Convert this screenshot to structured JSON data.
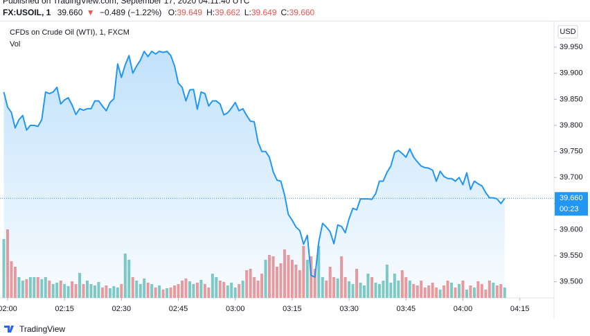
{
  "header": {
    "published": "Published on TradingView.com, September 17, 2020 04:11:40 UTC",
    "symbol": "FX:USOIL, 1",
    "price": "39.660",
    "arrow": "▼",
    "change": "−0.489 (−1.22%)",
    "ohlc": [
      {
        "key": "O:",
        "value": "39.649"
      },
      {
        "key": "H:",
        "value": "39.662"
      },
      {
        "key": "L:",
        "value": "39.649"
      },
      {
        "key": "C:",
        "value": "39.660"
      }
    ]
  },
  "chart_data": {
    "type": "area",
    "currency": "USD",
    "x": [
      "01:59",
      "02:00",
      "02:01",
      "02:02",
      "02:03",
      "02:04",
      "02:05",
      "02:06",
      "02:07",
      "02:08",
      "02:09",
      "02:10",
      "02:11",
      "02:12",
      "02:13",
      "02:14",
      "02:15",
      "02:16",
      "02:17",
      "02:18",
      "02:19",
      "02:20",
      "02:21",
      "02:22",
      "02:23",
      "02:24",
      "02:25",
      "02:26",
      "02:27",
      "02:28",
      "02:29",
      "02:30",
      "02:31",
      "02:32",
      "02:33",
      "02:34",
      "02:35",
      "02:36",
      "02:37",
      "02:38",
      "02:39",
      "02:40",
      "02:41",
      "02:42",
      "02:43",
      "02:44",
      "02:45",
      "02:46",
      "02:47",
      "02:48",
      "02:49",
      "02:50",
      "02:51",
      "02:52",
      "02:53",
      "02:54",
      "02:55",
      "02:56",
      "02:57",
      "02:58",
      "02:59",
      "03:00",
      "03:01",
      "03:02",
      "03:03",
      "03:04",
      "03:05",
      "03:06",
      "03:07",
      "03:08",
      "03:09",
      "03:10",
      "03:11",
      "03:12",
      "03:13",
      "03:14",
      "03:15",
      "03:16",
      "03:17",
      "03:18",
      "03:19",
      "03:20",
      "03:21",
      "03:22",
      "03:23",
      "03:24",
      "03:25",
      "03:26",
      "03:27",
      "03:28",
      "03:29",
      "03:30",
      "03:31",
      "03:32",
      "03:33",
      "03:34",
      "03:35",
      "03:36",
      "03:37",
      "03:38",
      "03:39",
      "03:40",
      "03:41",
      "03:42",
      "03:43",
      "03:44",
      "03:45",
      "03:46",
      "03:47",
      "03:48",
      "03:49",
      "03:50",
      "03:51",
      "03:52",
      "03:53",
      "03:54",
      "03:55",
      "03:56",
      "03:57",
      "03:58",
      "03:59",
      "04:00",
      "04:01",
      "04:02",
      "04:03",
      "04:04",
      "04:05",
      "04:06",
      "04:07",
      "04:08",
      "04:09",
      "04:10",
      "04:11"
    ],
    "series": [
      {
        "name": "CFDs on Crude Oil (WTI), 1, FXCM",
        "color": "#2196f3",
        "values": [
          39.864,
          39.835,
          39.825,
          39.795,
          39.811,
          39.819,
          39.791,
          39.8,
          39.8,
          39.798,
          39.811,
          39.864,
          39.861,
          39.864,
          39.873,
          39.841,
          39.849,
          39.853,
          39.839,
          39.821,
          39.832,
          39.829,
          39.832,
          39.832,
          39.847,
          39.847,
          39.837,
          39.828,
          39.844,
          39.851,
          39.918,
          39.892,
          39.916,
          39.934,
          39.9,
          39.914,
          39.925,
          39.942,
          39.932,
          39.942,
          39.937,
          39.942,
          39.94,
          39.942,
          39.934,
          39.914,
          39.881,
          39.873,
          39.847,
          39.868,
          39.869,
          39.831,
          39.864,
          39.861,
          39.837,
          39.847,
          39.847,
          39.841,
          39.82,
          39.824,
          39.833,
          39.844,
          39.828,
          39.832,
          39.819,
          39.808,
          39.807,
          39.768,
          39.75,
          39.75,
          39.739,
          39.711,
          39.695,
          39.693,
          39.666,
          39.629,
          39.618,
          39.605,
          39.598,
          39.572,
          39.589,
          39.512,
          39.509,
          39.576,
          39.612,
          39.605,
          39.596,
          39.573,
          39.609,
          39.606,
          39.594,
          39.621,
          39.641,
          39.638,
          39.659,
          39.659,
          39.659,
          39.658,
          39.669,
          39.693,
          39.693,
          39.71,
          39.722,
          39.748,
          39.752,
          39.746,
          39.739,
          39.755,
          39.739,
          39.73,
          39.722,
          39.719,
          39.718,
          39.714,
          39.693,
          39.712,
          39.702,
          39.698,
          39.698,
          39.693,
          39.7,
          39.686,
          39.709,
          39.677,
          39.693,
          39.688,
          39.684,
          39.671,
          39.661,
          39.661,
          39.659,
          39.65,
          39.66
        ]
      }
    ],
    "volume": {
      "name": "Vol",
      "colors": [
        "#ef9a9a",
        "#80cbc4"
      ],
      "values": [
        85,
        99,
        53,
        45,
        30,
        25,
        27,
        30,
        30,
        30,
        27,
        30,
        25,
        20,
        22,
        25,
        20,
        17,
        24,
        20,
        36,
        20,
        25,
        20,
        18,
        23,
        15,
        18,
        14,
        17,
        15,
        20,
        64,
        55,
        30,
        25,
        20,
        28,
        22,
        20,
        15,
        18,
        12,
        14,
        15,
        18,
        20,
        25,
        28,
        24,
        20,
        22,
        26,
        20,
        15,
        35,
        30,
        25,
        23,
        18,
        22,
        15,
        20,
        25,
        40,
        42,
        30,
        25,
        35,
        55,
        62,
        60,
        45,
        50,
        70,
        62,
        55,
        48,
        40,
        75,
        55,
        60,
        42,
        75,
        30,
        25,
        45,
        30,
        28,
        60,
        30,
        24,
        20,
        42,
        22,
        18,
        35,
        30,
        22,
        20,
        25,
        48,
        22,
        35,
        25,
        40,
        30,
        25,
        20,
        18,
        25,
        15,
        18,
        22,
        15,
        12,
        18,
        25,
        22,
        15,
        20,
        25,
        12,
        18,
        15,
        24,
        20,
        12,
        25,
        22,
        18,
        20,
        15
      ]
    },
    "xlim": [
      "01:58",
      "04:24"
    ],
    "xticks": [
      "02:00",
      "02:15",
      "02:30",
      "02:45",
      "03:00",
      "03:15",
      "03:30",
      "03:45",
      "04:00",
      "04:15"
    ],
    "ylim": [
      39.469,
      39.998
    ],
    "yticks": [
      {
        "value": 39.5,
        "label": "39.500"
      },
      {
        "value": 39.55,
        "label": "39.550"
      },
      {
        "value": 39.6,
        "label": "39.600"
      },
      {
        "value": 39.65,
        "label": "39.650"
      },
      {
        "value": 39.7,
        "label": "39.700"
      },
      {
        "value": 39.75,
        "label": "39.750"
      },
      {
        "value": 39.8,
        "label": "39.800"
      },
      {
        "value": 39.85,
        "label": "39.850"
      },
      {
        "value": 39.9,
        "label": "39.900"
      },
      {
        "value": 39.95,
        "label": "39.950"
      }
    ],
    "last_price": {
      "value": 39.66,
      "label": "39.660"
    },
    "countdown": "00:23"
  },
  "footer": {
    "brand": "TradingView"
  }
}
